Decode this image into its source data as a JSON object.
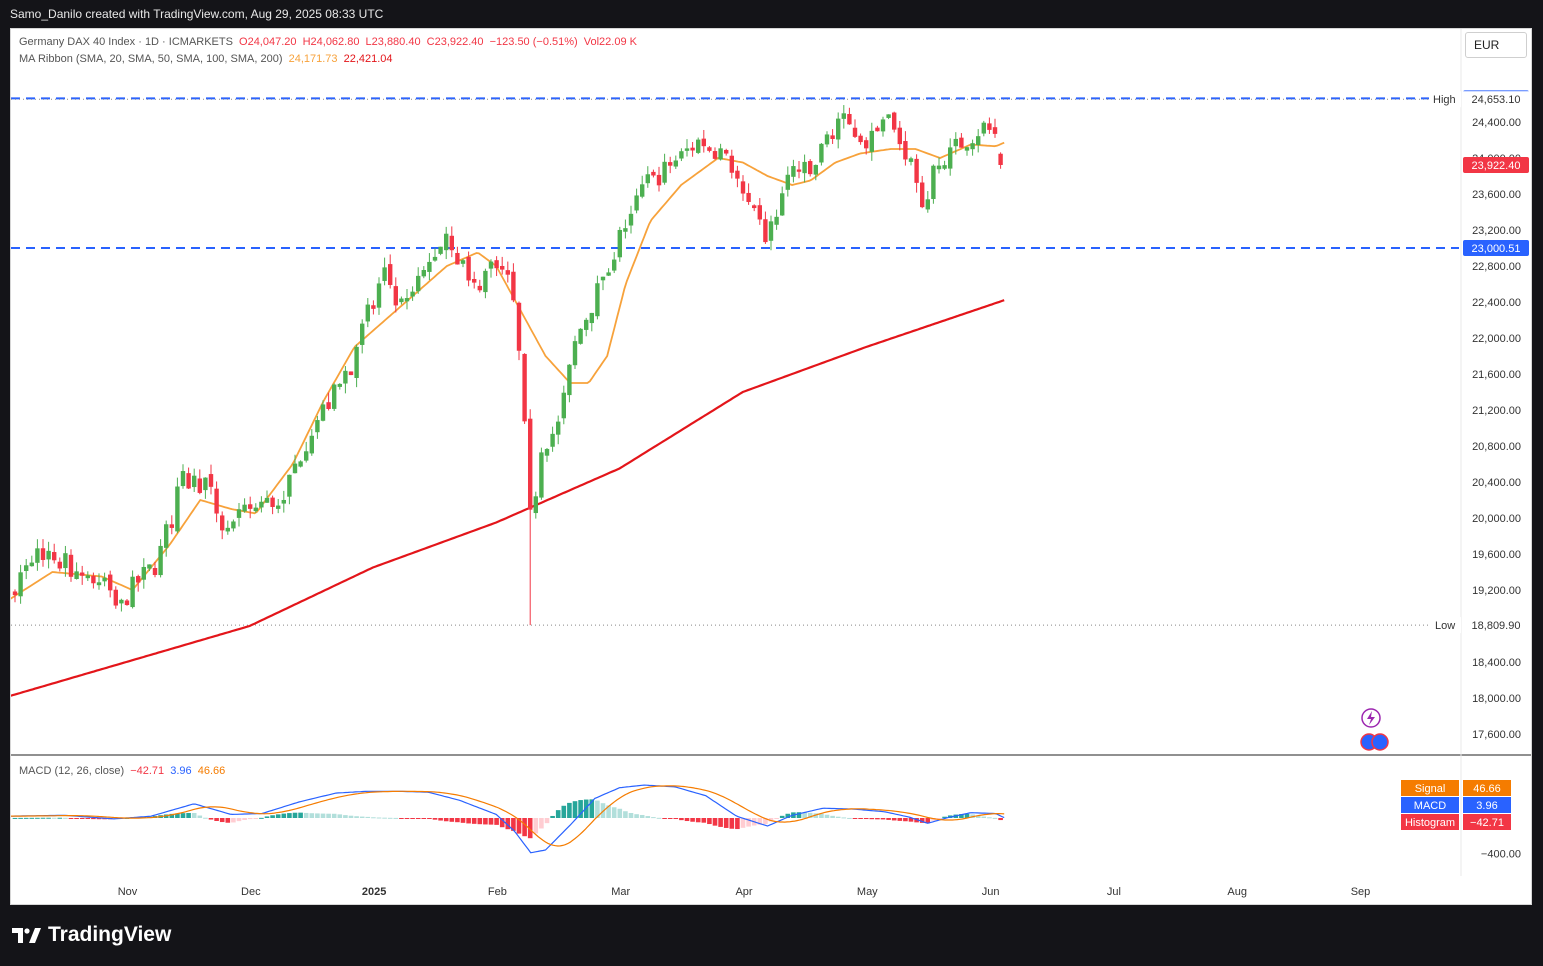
{
  "header": {
    "attribution": "Samo_Danilo created with TradingView.com, Aug 29, 2025 08:33 UTC"
  },
  "legend": {
    "symbol": "Germany DAX 40 Index · 1D · ICMARKETS",
    "open": "O24,047.20",
    "high": "H24,062.80",
    "low": "L23,880.40",
    "close": "C23,922.40",
    "change": "−123.50 (−0.51%)",
    "volume": "Vol22.09 K",
    "ma_title": "MA Ribbon (SMA, 20, SMA, 50, SMA, 100, SMA, 200)",
    "ma_value_1": "24,171.73",
    "ma_value_2": "22,421.04",
    "macd_title": "MACD (12, 26, close)",
    "macd_hist": "−42.71",
    "macd_line": "3.96",
    "macd_signal": "46.66"
  },
  "currency": "EUR",
  "footer": {
    "brand": "TradingView"
  },
  "chart_data": [
    {
      "type": "line",
      "subtype": "candlestick",
      "title": "Germany DAX 40 Index · 1D · ICMARKETS",
      "ylim": [
        17400,
        24900
      ],
      "y_ticks": [
        "17,600.00",
        "18,000.00",
        "18,400.00",
        "19,200.00",
        "19,600.00",
        "20,000.00",
        "20,400.00",
        "20,800.00",
        "21,200.00",
        "21,600.00",
        "22,000.00",
        "22,400.00",
        "22,800.00",
        "23,200.00",
        "23,600.00",
        "24,000.00",
        "24,400.00"
      ],
      "x_ticks": [
        "Nov",
        "Dec",
        "2025",
        "Feb",
        "Mar",
        "Apr",
        "May",
        "Jun",
        "Jul",
        "Aug",
        "Sep"
      ],
      "horizontal_levels": [
        {
          "label": "24,662.57",
          "value": 24662.57,
          "color": "#2962ff",
          "style": "dashed"
        },
        {
          "label": "23,000.51",
          "value": 23000.51,
          "color": "#2962ff",
          "style": "dashed"
        }
      ],
      "high_marker": {
        "label": "High",
        "value_text": "24,653.10",
        "value": 24653.1
      },
      "low_marker": {
        "label": "Low",
        "value_text": "18,809.90",
        "value": 18809.9
      },
      "last_price": {
        "value_text": "23,922.40",
        "value": 23922.4,
        "color": "#f23645"
      },
      "trend_anchors": [
        {
          "m": 0,
          "c": 19150
        },
        {
          "m": 0.3,
          "c": 19650
        },
        {
          "m": 0.7,
          "c": 19350
        },
        {
          "m": 0.95,
          "c": 19050
        },
        {
          "m": 1.1,
          "c": 19300
        },
        {
          "m": 1.25,
          "c": 19500
        },
        {
          "m": 1.45,
          "c": 20400
        },
        {
          "m": 1.65,
          "c": 20400
        },
        {
          "m": 1.8,
          "c": 19800
        },
        {
          "m": 2.0,
          "c": 20100
        },
        {
          "m": 2.25,
          "c": 20200
        },
        {
          "m": 2.5,
          "c": 21000
        },
        {
          "m": 2.75,
          "c": 21500
        },
        {
          "m": 3.0,
          "c": 22400
        },
        {
          "m": 3.1,
          "c": 22700
        },
        {
          "m": 3.25,
          "c": 22300
        },
        {
          "m": 3.45,
          "c": 22800
        },
        {
          "m": 3.6,
          "c": 23200
        },
        {
          "m": 3.8,
          "c": 22500
        },
        {
          "m": 4.0,
          "c": 22900
        },
        {
          "m": 4.08,
          "c": 22700
        },
        {
          "m": 4.15,
          "c": 22300
        },
        {
          "m": 4.22,
          "c": 21300
        },
        {
          "m": 4.25,
          "c": 20300
        },
        {
          "m": 4.29,
          "c": 19800
        },
        {
          "m": 4.35,
          "c": 20800
        },
        {
          "m": 4.5,
          "c": 21000
        },
        {
          "m": 4.65,
          "c": 22000
        },
        {
          "m": 4.85,
          "c": 22600
        },
        {
          "m": 5.0,
          "c": 23100
        },
        {
          "m": 5.2,
          "c": 23700
        },
        {
          "m": 5.4,
          "c": 23900
        },
        {
          "m": 5.65,
          "c": 24200
        },
        {
          "m": 5.85,
          "c": 24050
        },
        {
          "m": 6.05,
          "c": 23400
        },
        {
          "m": 6.2,
          "c": 23100
        },
        {
          "m": 6.4,
          "c": 23900
        },
        {
          "m": 6.55,
          "c": 23800
        },
        {
          "m": 6.75,
          "c": 24450
        },
        {
          "m": 7.0,
          "c": 24200
        },
        {
          "m": 7.2,
          "c": 24350
        },
        {
          "m": 7.35,
          "c": 24000
        },
        {
          "m": 7.45,
          "c": 23450
        },
        {
          "m": 7.55,
          "c": 23800
        },
        {
          "m": 7.75,
          "c": 24150
        },
        {
          "m": 7.95,
          "c": 24350
        },
        {
          "m": 8.05,
          "c": 24250
        },
        {
          "m": 8.1,
          "c": 23950
        }
      ],
      "series": [
        {
          "name": "SMA 20",
          "color": "#f7a23b",
          "anchors": [
            {
              "m": 0,
              "c": 19050
            },
            {
              "m": 0.4,
              "c": 19400
            },
            {
              "m": 0.8,
              "c": 19350
            },
            {
              "m": 1.05,
              "c": 19200
            },
            {
              "m": 1.35,
              "c": 19700
            },
            {
              "m": 1.6,
              "c": 20200
            },
            {
              "m": 1.85,
              "c": 20100
            },
            {
              "m": 2.05,
              "c": 20050
            },
            {
              "m": 2.35,
              "c": 20600
            },
            {
              "m": 2.6,
              "c": 21300
            },
            {
              "m": 2.85,
              "c": 21900
            },
            {
              "m": 3.1,
              "c": 22200
            },
            {
              "m": 3.35,
              "c": 22500
            },
            {
              "m": 3.6,
              "c": 22800
            },
            {
              "m": 3.85,
              "c": 22950
            },
            {
              "m": 4.0,
              "c": 22800
            },
            {
              "m": 4.2,
              "c": 22300
            },
            {
              "m": 4.4,
              "c": 21800
            },
            {
              "m": 4.6,
              "c": 21500
            },
            {
              "m": 4.75,
              "c": 21500
            },
            {
              "m": 4.9,
              "c": 21800
            },
            {
              "m": 5.05,
              "c": 22600
            },
            {
              "m": 5.25,
              "c": 23300
            },
            {
              "m": 5.5,
              "c": 23700
            },
            {
              "m": 5.8,
              "c": 24000
            },
            {
              "m": 6.0,
              "c": 23950
            },
            {
              "m": 6.2,
              "c": 23800
            },
            {
              "m": 6.4,
              "c": 23700
            },
            {
              "m": 6.55,
              "c": 23750
            },
            {
              "m": 6.75,
              "c": 23950
            },
            {
              "m": 6.95,
              "c": 24050
            },
            {
              "m": 7.2,
              "c": 24100
            },
            {
              "m": 7.4,
              "c": 24100
            },
            {
              "m": 7.6,
              "c": 24000
            },
            {
              "m": 7.85,
              "c": 24150
            },
            {
              "m": 8.05,
              "c": 24130
            },
            {
              "m": 8.12,
              "c": 24170
            }
          ]
        },
        {
          "name": "SMA 200",
          "color": "#e3151a",
          "anchors": [
            {
              "m": 0,
              "c": 18000
            },
            {
              "m": 1,
              "c": 18400
            },
            {
              "m": 2,
              "c": 18800
            },
            {
              "m": 3,
              "c": 19450
            },
            {
              "m": 4,
              "c": 19950
            },
            {
              "m": 5,
              "c": 20550
            },
            {
              "m": 6,
              "c": 21400
            },
            {
              "m": 7,
              "c": 21900
            },
            {
              "m": 8.12,
              "c": 22420
            }
          ]
        }
      ]
    },
    {
      "type": "bar",
      "title": "MACD (12, 26, close)",
      "y_ticks": [
        "−400.00"
      ],
      "series": [
        {
          "name": "Signal",
          "value": 46.66,
          "color": "#f57c00"
        },
        {
          "name": "MACD",
          "value": 3.96,
          "color": "#2962ff"
        },
        {
          "name": "Histogram",
          "value": -42.71,
          "color": "#f23645"
        }
      ],
      "macd_anchors": [
        {
          "m": 0,
          "v": 20
        },
        {
          "m": 0.5,
          "v": 30
        },
        {
          "m": 0.9,
          "v": -10
        },
        {
          "m": 1.2,
          "v": 20
        },
        {
          "m": 1.55,
          "v": 160
        },
        {
          "m": 1.85,
          "v": 40
        },
        {
          "m": 2.1,
          "v": 50
        },
        {
          "m": 2.4,
          "v": 180
        },
        {
          "m": 2.7,
          "v": 280
        },
        {
          "m": 2.95,
          "v": 300
        },
        {
          "m": 3.2,
          "v": 300
        },
        {
          "m": 3.45,
          "v": 290
        },
        {
          "m": 3.7,
          "v": 200
        },
        {
          "m": 4.0,
          "v": 40
        },
        {
          "m": 4.15,
          "v": -150
        },
        {
          "m": 4.28,
          "v": -390
        },
        {
          "m": 4.4,
          "v": -360
        },
        {
          "m": 4.6,
          "v": -80
        },
        {
          "m": 4.8,
          "v": 220
        },
        {
          "m": 5.0,
          "v": 340
        },
        {
          "m": 5.2,
          "v": 370
        },
        {
          "m": 5.45,
          "v": 350
        },
        {
          "m": 5.7,
          "v": 250
        },
        {
          "m": 5.95,
          "v": 20
        },
        {
          "m": 6.2,
          "v": -90
        },
        {
          "m": 6.4,
          "v": 30
        },
        {
          "m": 6.65,
          "v": 110
        },
        {
          "m": 6.9,
          "v": 100
        },
        {
          "m": 7.15,
          "v": 70
        },
        {
          "m": 7.35,
          "v": 10
        },
        {
          "m": 7.5,
          "v": -60
        },
        {
          "m": 7.65,
          "v": 0
        },
        {
          "m": 7.85,
          "v": 60
        },
        {
          "m": 8.05,
          "v": 50
        },
        {
          "m": 8.12,
          "v": 4
        }
      ]
    }
  ]
}
